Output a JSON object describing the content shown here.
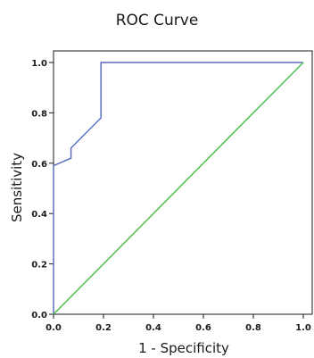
{
  "chart_data": {
    "type": "line",
    "title": "ROC Curve",
    "xlabel": "1 - Specificity",
    "ylabel": "Sensitivity",
    "xlim": [
      0,
      1
    ],
    "ylim": [
      0,
      1
    ],
    "xticks": [
      "0.0",
      "0.2",
      "0.4",
      "0.6",
      "0.8",
      "1.0"
    ],
    "yticks": [
      "0.0",
      "0.2",
      "0.4",
      "0.6",
      "0.8",
      "1.0"
    ],
    "grid": false,
    "series": [
      {
        "color": "#5b6fc0",
        "x": [
          0.0,
          0.0,
          0.07,
          0.07,
          0.19,
          0.19,
          1.0
        ],
        "y": [
          0.0,
          0.59,
          0.62,
          0.66,
          0.78,
          1.0,
          1.0
        ]
      },
      {
        "color": "#4dc04d",
        "x": [
          0.0,
          1.0
        ],
        "y": [
          0.0,
          1.0
        ]
      }
    ]
  }
}
